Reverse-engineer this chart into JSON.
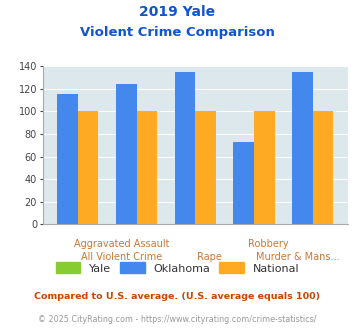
{
  "title_line1": "2019 Yale",
  "title_line2": "Violent Crime Comparison",
  "categories": [
    "All Violent Crime",
    "Aggravated Assault",
    "Rape",
    "Robbery",
    "Murder & Mans..."
  ],
  "yale_values": [
    null,
    null,
    null,
    null,
    null
  ],
  "oklahoma_values": [
    115,
    124,
    135,
    73,
    135
  ],
  "national_values": [
    100,
    100,
    100,
    100,
    100
  ],
  "yale_color": "#88cc33",
  "oklahoma_color": "#4488ee",
  "national_color": "#ffaa22",
  "background_color": "#dce8ec",
  "ylim": [
    0,
    140
  ],
  "yticks": [
    0,
    20,
    40,
    60,
    80,
    100,
    120,
    140
  ],
  "title_color": "#1155cc",
  "footer_text1": "Compared to U.S. average. (U.S. average equals 100)",
  "footer_text2": "© 2025 CityRating.com - https://www.cityrating.com/crime-statistics/",
  "footer_color1": "#cc4400",
  "footer_color2": "#999999",
  "xlabel_color": "#cc7733",
  "bar_width": 0.35
}
